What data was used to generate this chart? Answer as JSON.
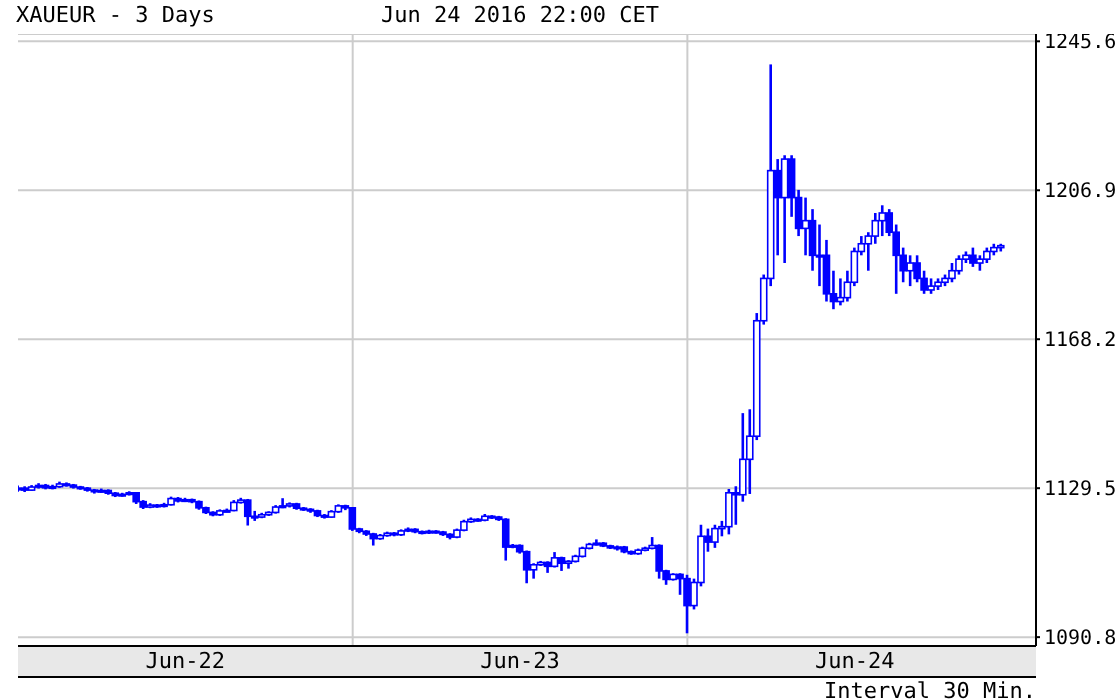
{
  "chart_data": {
    "type": "candlestick",
    "title": "XAUEUR - 3 Days",
    "subtitle": "Jun 24 2016 22:00 CET",
    "annotations": [
      "Interval 30 Min."
    ],
    "x": [
      "2016-06-22T00:00",
      "2016-06-22T00:30",
      "2016-06-22T01:00",
      "2016-06-22T01:30",
      "2016-06-22T02:00",
      "2016-06-22T02:30",
      "2016-06-22T03:00",
      "2016-06-22T03:30",
      "2016-06-22T04:00",
      "2016-06-22T04:30",
      "2016-06-22T05:00",
      "2016-06-22T05:30",
      "2016-06-22T06:00",
      "2016-06-22T06:30",
      "2016-06-22T07:00",
      "2016-06-22T07:30",
      "2016-06-22T08:00",
      "2016-06-22T08:30",
      "2016-06-22T09:00",
      "2016-06-22T09:30",
      "2016-06-22T10:00",
      "2016-06-22T10:30",
      "2016-06-22T11:00",
      "2016-06-22T11:30",
      "2016-06-22T12:00",
      "2016-06-22T12:30",
      "2016-06-22T13:00",
      "2016-06-22T13:30",
      "2016-06-22T14:00",
      "2016-06-22T14:30",
      "2016-06-22T15:00",
      "2016-06-22T15:30",
      "2016-06-22T16:00",
      "2016-06-22T16:30",
      "2016-06-22T17:00",
      "2016-06-22T17:30",
      "2016-06-22T18:00",
      "2016-06-22T18:30",
      "2016-06-22T19:00",
      "2016-06-22T19:30",
      "2016-06-22T20:00",
      "2016-06-22T20:30",
      "2016-06-22T21:00",
      "2016-06-22T21:30",
      "2016-06-22T22:00",
      "2016-06-22T22:30",
      "2016-06-22T23:00",
      "2016-06-22T23:30",
      "2016-06-23T00:00",
      "2016-06-23T00:30",
      "2016-06-23T01:00",
      "2016-06-23T01:30",
      "2016-06-23T02:00",
      "2016-06-23T02:30",
      "2016-06-23T03:00",
      "2016-06-23T03:30",
      "2016-06-23T04:00",
      "2016-06-23T04:30",
      "2016-06-23T05:00",
      "2016-06-23T05:30",
      "2016-06-23T06:00",
      "2016-06-23T06:30",
      "2016-06-23T07:00",
      "2016-06-23T07:30",
      "2016-06-23T08:00",
      "2016-06-23T08:30",
      "2016-06-23T09:00",
      "2016-06-23T09:30",
      "2016-06-23T10:00",
      "2016-06-23T10:30",
      "2016-06-23T11:00",
      "2016-06-23T11:30",
      "2016-06-23T12:00",
      "2016-06-23T12:30",
      "2016-06-23T13:00",
      "2016-06-23T13:30",
      "2016-06-23T14:00",
      "2016-06-23T14:30",
      "2016-06-23T15:00",
      "2016-06-23T15:30",
      "2016-06-23T16:00",
      "2016-06-23T16:30",
      "2016-06-23T17:00",
      "2016-06-23T17:30",
      "2016-06-23T18:00",
      "2016-06-23T18:30",
      "2016-06-23T19:00",
      "2016-06-23T19:30",
      "2016-06-23T20:00",
      "2016-06-23T20:30",
      "2016-06-23T21:00",
      "2016-06-23T21:30",
      "2016-06-23T22:00",
      "2016-06-23T22:30",
      "2016-06-23T23:00",
      "2016-06-23T23:30",
      "2016-06-24T00:00",
      "2016-06-24T00:30",
      "2016-06-24T01:00",
      "2016-06-24T01:30",
      "2016-06-24T02:00",
      "2016-06-24T02:30",
      "2016-06-24T03:00",
      "2016-06-24T03:30",
      "2016-06-24T04:00",
      "2016-06-24T04:30",
      "2016-06-24T05:00",
      "2016-06-24T05:30",
      "2016-06-24T06:00",
      "2016-06-24T06:30",
      "2016-06-24T07:00",
      "2016-06-24T07:30",
      "2016-06-24T08:00",
      "2016-06-24T08:30",
      "2016-06-24T09:00",
      "2016-06-24T09:30",
      "2016-06-24T10:00",
      "2016-06-24T10:30",
      "2016-06-24T11:00",
      "2016-06-24T11:30",
      "2016-06-24T12:00",
      "2016-06-24T12:30",
      "2016-06-24T13:00",
      "2016-06-24T13:30",
      "2016-06-24T14:00",
      "2016-06-24T14:30",
      "2016-06-24T15:00",
      "2016-06-24T15:30",
      "2016-06-24T16:00",
      "2016-06-24T16:30",
      "2016-06-24T17:00",
      "2016-06-24T17:30",
      "2016-06-24T18:00",
      "2016-06-24T18:30",
      "2016-06-24T19:00",
      "2016-06-24T19:30",
      "2016-06-24T20:00",
      "2016-06-24T20:30",
      "2016-06-24T21:00",
      "2016-06-24T21:30",
      "2016-06-24T22:00",
      "2016-06-24T22:30"
    ],
    "ohlc": [
      [
        1129.3,
        1130.2,
        1128.6,
        1129.5
      ],
      [
        1129.5,
        1130.0,
        1128.5,
        1129.0
      ],
      [
        1129.0,
        1130.3,
        1128.8,
        1129.8
      ],
      [
        1129.8,
        1130.8,
        1129.4,
        1130.2
      ],
      [
        1130.2,
        1130.6,
        1129.2,
        1129.6
      ],
      [
        1129.6,
        1130.4,
        1129.2,
        1129.9
      ],
      [
        1129.9,
        1131.2,
        1129.6,
        1130.6
      ],
      [
        1130.6,
        1131.0,
        1129.9,
        1130.3
      ],
      [
        1130.3,
        1130.6,
        1129.4,
        1129.8
      ],
      [
        1129.8,
        1130.1,
        1129.1,
        1129.5
      ],
      [
        1129.5,
        1129.8,
        1128.6,
        1129.0
      ],
      [
        1129.0,
        1129.3,
        1128.1,
        1128.6
      ],
      [
        1128.6,
        1129.4,
        1128.3,
        1128.9
      ],
      [
        1128.9,
        1129.2,
        1127.8,
        1128.2
      ],
      [
        1128.2,
        1128.5,
        1127.2,
        1127.6
      ],
      [
        1127.6,
        1128.3,
        1127.3,
        1127.9
      ],
      [
        1127.9,
        1128.7,
        1127.6,
        1128.3
      ],
      [
        1128.3,
        1128.5,
        1125.4,
        1126.0
      ],
      [
        1126.0,
        1126.4,
        1124.1,
        1124.6
      ],
      [
        1124.6,
        1125.6,
        1124.3,
        1125.1
      ],
      [
        1125.1,
        1125.4,
        1124.4,
        1124.8
      ],
      [
        1124.8,
        1125.7,
        1124.5,
        1125.2
      ],
      [
        1125.2,
        1127.3,
        1125.0,
        1126.8
      ],
      [
        1126.8,
        1127.2,
        1125.8,
        1126.2
      ],
      [
        1126.2,
        1127.0,
        1125.9,
        1126.5
      ],
      [
        1126.5,
        1126.8,
        1125.6,
        1126.0
      ],
      [
        1126.0,
        1126.3,
        1123.9,
        1124.4
      ],
      [
        1124.4,
        1124.7,
        1122.8,
        1123.2
      ],
      [
        1123.2,
        1123.5,
        1122.2,
        1122.6
      ],
      [
        1122.6,
        1124.0,
        1122.3,
        1123.6
      ],
      [
        1123.6,
        1124.2,
        1123.3,
        1123.7
      ],
      [
        1123.7,
        1126.4,
        1123.5,
        1125.8
      ],
      [
        1125.8,
        1127.0,
        1125.5,
        1126.4
      ],
      [
        1126.4,
        1126.7,
        1119.8,
        1122.2
      ],
      [
        1122.2,
        1123.6,
        1121.0,
        1122.0
      ],
      [
        1122.0,
        1123.1,
        1121.7,
        1122.6
      ],
      [
        1122.6,
        1123.5,
        1122.3,
        1123.2
      ],
      [
        1123.2,
        1125.1,
        1122.9,
        1124.6
      ],
      [
        1124.6,
        1126.9,
        1124.3,
        1124.9
      ],
      [
        1124.9,
        1125.8,
        1124.5,
        1125.4
      ],
      [
        1125.4,
        1125.7,
        1123.9,
        1124.3
      ],
      [
        1124.3,
        1124.6,
        1123.6,
        1124.0
      ],
      [
        1124.0,
        1124.3,
        1123.1,
        1123.6
      ],
      [
        1123.6,
        1123.9,
        1122.0,
        1122.4
      ],
      [
        1122.4,
        1122.8,
        1121.6,
        1122.0
      ],
      [
        1122.0,
        1123.8,
        1121.8,
        1123.4
      ],
      [
        1123.4,
        1125.3,
        1123.1,
        1124.9
      ],
      [
        1124.9,
        1125.2,
        1123.8,
        1124.4
      ],
      [
        1124.4,
        1124.6,
        1118.4,
        1118.9
      ],
      [
        1118.9,
        1119.2,
        1117.8,
        1118.3
      ],
      [
        1118.3,
        1118.6,
        1117.1,
        1117.6
      ],
      [
        1117.6,
        1117.9,
        1114.6,
        1116.4
      ],
      [
        1116.4,
        1117.6,
        1116.1,
        1117.2
      ],
      [
        1117.2,
        1118.2,
        1116.9,
        1117.8
      ],
      [
        1117.8,
        1118.1,
        1117.0,
        1117.4
      ],
      [
        1117.4,
        1118.8,
        1117.1,
        1118.4
      ],
      [
        1118.4,
        1119.3,
        1118.1,
        1118.8
      ],
      [
        1118.8,
        1119.1,
        1117.8,
        1118.2
      ],
      [
        1118.2,
        1118.5,
        1117.5,
        1117.9
      ],
      [
        1117.9,
        1118.7,
        1117.6,
        1118.3
      ],
      [
        1118.3,
        1118.6,
        1117.7,
        1118.1
      ],
      [
        1118.1,
        1118.4,
        1117.1,
        1117.5
      ],
      [
        1117.5,
        1117.8,
        1116.2,
        1116.8
      ],
      [
        1116.8,
        1119.0,
        1116.5,
        1118.6
      ],
      [
        1118.6,
        1121.3,
        1118.3,
        1120.8
      ],
      [
        1120.8,
        1121.9,
        1120.5,
        1121.4
      ],
      [
        1121.4,
        1121.7,
        1120.8,
        1121.2
      ],
      [
        1121.2,
        1122.8,
        1120.9,
        1122.2
      ],
      [
        1122.2,
        1122.5,
        1121.5,
        1122.0
      ],
      [
        1122.0,
        1122.3,
        1121.0,
        1121.4
      ],
      [
        1121.4,
        1121.7,
        1110.7,
        1114.2
      ],
      [
        1114.2,
        1115.0,
        1113.9,
        1114.6
      ],
      [
        1114.6,
        1114.9,
        1112.5,
        1113.0
      ],
      [
        1113.0,
        1113.3,
        1104.8,
        1108.3
      ],
      [
        1108.3,
        1110.0,
        1106.0,
        1109.6
      ],
      [
        1109.6,
        1110.6,
        1109.3,
        1110.2
      ],
      [
        1110.2,
        1110.5,
        1107.5,
        1109.2
      ],
      [
        1109.2,
        1112.9,
        1108.9,
        1111.4
      ],
      [
        1111.4,
        1111.7,
        1108.0,
        1110.0
      ],
      [
        1110.0,
        1110.8,
        1108.6,
        1110.5
      ],
      [
        1110.5,
        1112.2,
        1110.2,
        1111.8
      ],
      [
        1111.8,
        1114.3,
        1111.5,
        1113.9
      ],
      [
        1113.9,
        1115.3,
        1113.6,
        1114.9
      ],
      [
        1114.9,
        1116.2,
        1114.6,
        1115.2
      ],
      [
        1115.2,
        1115.5,
        1114.2,
        1114.5
      ],
      [
        1114.5,
        1114.8,
        1113.7,
        1114.0
      ],
      [
        1114.0,
        1114.6,
        1113.3,
        1114.2
      ],
      [
        1114.2,
        1114.5,
        1112.6,
        1113.0
      ],
      [
        1113.0,
        1113.3,
        1112.2,
        1112.5
      ],
      [
        1112.5,
        1113.8,
        1112.2,
        1113.4
      ],
      [
        1113.4,
        1114.3,
        1113.1,
        1113.9
      ],
      [
        1113.9,
        1116.8,
        1113.6,
        1114.6
      ],
      [
        1114.6,
        1114.9,
        1106.0,
        1108.0
      ],
      [
        1108.0,
        1108.3,
        1104.4,
        1105.8
      ],
      [
        1105.8,
        1107.4,
        1105.5,
        1107.1
      ],
      [
        1107.1,
        1107.4,
        1101.8,
        1106.0
      ],
      [
        1106.0,
        1107.0,
        1091.8,
        1099.0
      ],
      [
        1099.0,
        1106.0,
        1098.0,
        1105.0
      ],
      [
        1105.0,
        1120.0,
        1104.0,
        1117.0
      ],
      [
        1117.0,
        1119.0,
        1113.0,
        1115.5
      ],
      [
        1115.5,
        1120.0,
        1114.0,
        1119.0
      ],
      [
        1119.0,
        1121.0,
        1117.0,
        1119.5
      ],
      [
        1119.5,
        1129.3,
        1117.5,
        1128.3
      ],
      [
        1128.3,
        1130.0,
        1120.0,
        1127.8
      ],
      [
        1127.8,
        1149.0,
        1126.0,
        1137.0
      ],
      [
        1137.0,
        1150.0,
        1128.0,
        1143.0
      ],
      [
        1143.0,
        1175.0,
        1142.0,
        1173.0
      ],
      [
        1173.0,
        1185.0,
        1172.0,
        1184.0
      ],
      [
        1184.0,
        1239.6,
        1182.0,
        1212.0
      ],
      [
        1212.0,
        1215.0,
        1190.0,
        1205.0
      ],
      [
        1205.0,
        1216.0,
        1188.0,
        1215.0
      ],
      [
        1215.0,
        1216.0,
        1200.0,
        1205.0
      ],
      [
        1205.0,
        1207.0,
        1195.0,
        1197.0
      ],
      [
        1197.0,
        1205.0,
        1190.0,
        1199.0
      ],
      [
        1199.0,
        1202.0,
        1186.0,
        1190.0
      ],
      [
        1190.0,
        1198.0,
        1182.0,
        1190.0
      ],
      [
        1190.0,
        1194.0,
        1178.0,
        1180.0
      ],
      [
        1180.0,
        1186.0,
        1176.0,
        1178.0
      ],
      [
        1178.0,
        1184.0,
        1177.0,
        1179.0
      ],
      [
        1179.0,
        1186.0,
        1178.0,
        1183.0
      ],
      [
        1183.0,
        1192.0,
        1182.0,
        1191.0
      ],
      [
        1191.0,
        1195.0,
        1190.0,
        1193.0
      ],
      [
        1193.0,
        1196.0,
        1186.0,
        1195.0
      ],
      [
        1195.0,
        1201.0,
        1193.0,
        1199.0
      ],
      [
        1199.0,
        1203.0,
        1195.0,
        1201.0
      ],
      [
        1201.0,
        1202.0,
        1195.0,
        1196.0
      ],
      [
        1196.0,
        1198.0,
        1180.0,
        1190.0
      ],
      [
        1190.0,
        1192.0,
        1183.0,
        1186.0
      ],
      [
        1186.0,
        1190.0,
        1182.0,
        1188.0
      ],
      [
        1188.0,
        1190.0,
        1183.0,
        1184.0
      ],
      [
        1184.0,
        1186.0,
        1180.0,
        1181.0
      ],
      [
        1181.0,
        1184.0,
        1180.0,
        1182.0
      ],
      [
        1182.0,
        1184.0,
        1181.0,
        1183.0
      ],
      [
        1183.0,
        1185.0,
        1182.0,
        1184.0
      ],
      [
        1184.0,
        1188.0,
        1183.0,
        1186.0
      ],
      [
        1186.0,
        1190.0,
        1185.0,
        1189.0
      ],
      [
        1189.0,
        1191.0,
        1188.0,
        1190.0
      ],
      [
        1190.0,
        1192.0,
        1187.0,
        1188.0
      ],
      [
        1188.0,
        1190.0,
        1186.0,
        1189.0
      ],
      [
        1189.0,
        1192.0,
        1188.0,
        1191.0
      ],
      [
        1191.0,
        1193.0,
        1190.0,
        1192.0
      ],
      [
        1192.0,
        1193.0,
        1191.0,
        1192.5
      ]
    ],
    "color": "#0000ff",
    "xlim": [
      "2016-06-22T00:00",
      "2016-06-25T01:00"
    ],
    "xticks": [
      {
        "value": "2016-06-22T12:00",
        "label": "Jun-22"
      },
      {
        "value": "2016-06-23T12:00",
        "label": "Jun-23"
      },
      {
        "value": "2016-06-24T12:00",
        "label": "Jun-24"
      }
    ],
    "ylim": [
      1088.5,
      1247.5
    ],
    "yticks": [
      1090.8,
      1129.5,
      1168.2,
      1206.9,
      1245.6
    ],
    "ref_lines": [
      {
        "axis": "x",
        "value": "2016-06-23T00:00",
        "color": "#cccccc"
      },
      {
        "axis": "x",
        "value": "2016-06-24T00:00",
        "color": "#cccccc"
      }
    ],
    "grid": "y"
  }
}
